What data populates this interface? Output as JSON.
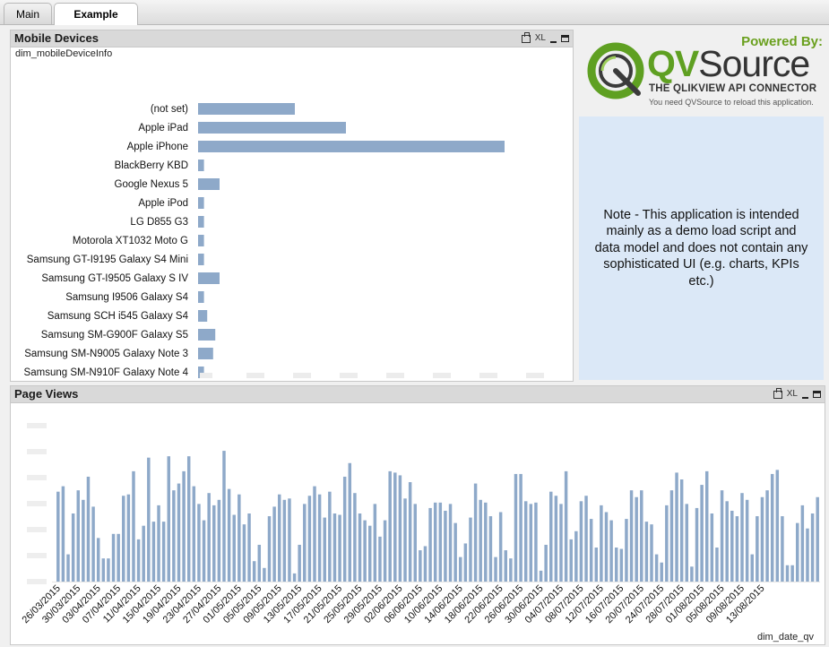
{
  "tabs": [
    {
      "label": "Main",
      "active": false
    },
    {
      "label": "Example",
      "active": true
    }
  ],
  "mobile_box": {
    "title": "Mobile Devices",
    "dimension": "dim_mobileDeviceInfo",
    "icons": [
      "print-icon",
      "xl-export-icon",
      "minimize-icon",
      "maximize-icon"
    ],
    "xl_label": "XL"
  },
  "pageviews_box": {
    "title": "Page Views",
    "dimension": "dim_date_qv",
    "icons": [
      "print-icon",
      "xl-export-icon",
      "minimize-icon",
      "maximize-icon"
    ],
    "xl_label": "XL"
  },
  "logo": {
    "powered_by": "Powered By:",
    "brand_qv": "QV",
    "brand_source": "Source",
    "tagline": "THE QLIKVIEW API CONNECTOR",
    "note": "You need QVSource to reload this application."
  },
  "note": {
    "text": "Note - This application is intended mainly as a demo load script and data model and does not contain any sophisticated UI (e.g. charts, KPIs etc.)"
  },
  "colors": {
    "bar": "#8ea9c9",
    "note_bg": "#dbe8f7",
    "caption_bg": "#d9d9d9",
    "brand_green": "#5fa022"
  },
  "chart_data": [
    {
      "type": "bar",
      "orientation": "horizontal",
      "title": "Mobile Devices",
      "xlabel": "",
      "ylabel": "dim_mobileDeviceInfo",
      "categories": [
        "(not set)",
        "Apple iPad",
        "Apple iPhone",
        "BlackBerry KBD",
        "Google Nexus 5",
        "Apple iPod",
        "LG D855 G3",
        "Motorola XT1032 Moto G",
        "Samsung GT-I9195 Galaxy S4 Mini",
        "Samsung GT-I9505 Galaxy S IV",
        "Samsung I9506 Galaxy S4",
        "Samsung SCH i545 Galaxy S4",
        "Samsung SM-G900F Galaxy S5",
        "Samsung SM-N9005 Galaxy Note 3",
        "Samsung SM-N910F Galaxy Note 4"
      ],
      "values": [
        18,
        27.5,
        57,
        1.1,
        4,
        1.1,
        1.1,
        1.1,
        1.1,
        4,
        1.1,
        1.7,
        3.2,
        2.8,
        1.1
      ],
      "xlim": [
        0,
        66
      ],
      "tick_count": 8,
      "grid": false
    },
    {
      "type": "bar",
      "title": "Page Views",
      "xlabel": "dim_date_qv",
      "ylabel": "",
      "x_start_date": "2015-03-26",
      "x_tick_labels": [
        "26/03/2015",
        "30/03/2015",
        "03/04/2015",
        "07/04/2015",
        "11/04/2015",
        "15/04/2015",
        "19/04/2015",
        "23/04/2015",
        "27/04/2015",
        "01/05/2015",
        "05/05/2015",
        "09/05/2015",
        "13/05/2015",
        "17/05/2015",
        "21/05/2015",
        "25/05/2015",
        "29/05/2015",
        "02/06/2015",
        "06/06/2015",
        "10/06/2015",
        "14/06/2015",
        "18/06/2015",
        "22/06/2015",
        "26/06/2015",
        "30/06/2015",
        "04/07/2015",
        "08/07/2015",
        "12/07/2015",
        "16/07/2015",
        "20/07/2015",
        "24/07/2015",
        "28/07/2015",
        "01/08/2015",
        "05/08/2015",
        "09/08/2015",
        "13/08/2015"
      ],
      "values": [
        66,
        70,
        20,
        50,
        67,
        60,
        77,
        55,
        32,
        17,
        17,
        35,
        35,
        63,
        64,
        81,
        31,
        41,
        91,
        44,
        56,
        44,
        92,
        67,
        72,
        81,
        92,
        70,
        57,
        45,
        65,
        56,
        60,
        96,
        68,
        49,
        64,
        42,
        50,
        15,
        27,
        10,
        48,
        55,
        64,
        60,
        61,
        6,
        27,
        57,
        63,
        70,
        64,
        47,
        66,
        50,
        49,
        77,
        87,
        65,
        50,
        45,
        41,
        57,
        33,
        45,
        81,
        80,
        78,
        61,
        73,
        57,
        23,
        26,
        54,
        58,
        58,
        52,
        57,
        43,
        18,
        28,
        47,
        72,
        60,
        58,
        48,
        18,
        51,
        23,
        17,
        79,
        79,
        59,
        57,
        58,
        8,
        27,
        66,
        63,
        57,
        81,
        31,
        37,
        59,
        63,
        46,
        25,
        56,
        51,
        45,
        25,
        24,
        46,
        67,
        62,
        67,
        44,
        42,
        20,
        14,
        56,
        67,
        80,
        75,
        57,
        11,
        54,
        71,
        81,
        50,
        25,
        67,
        59,
        52,
        48,
        65,
        60,
        20,
        48,
        62,
        67,
        79,
        82,
        48,
        12,
        12,
        43,
        56,
        39,
        50,
        62
      ]
    }
  ]
}
